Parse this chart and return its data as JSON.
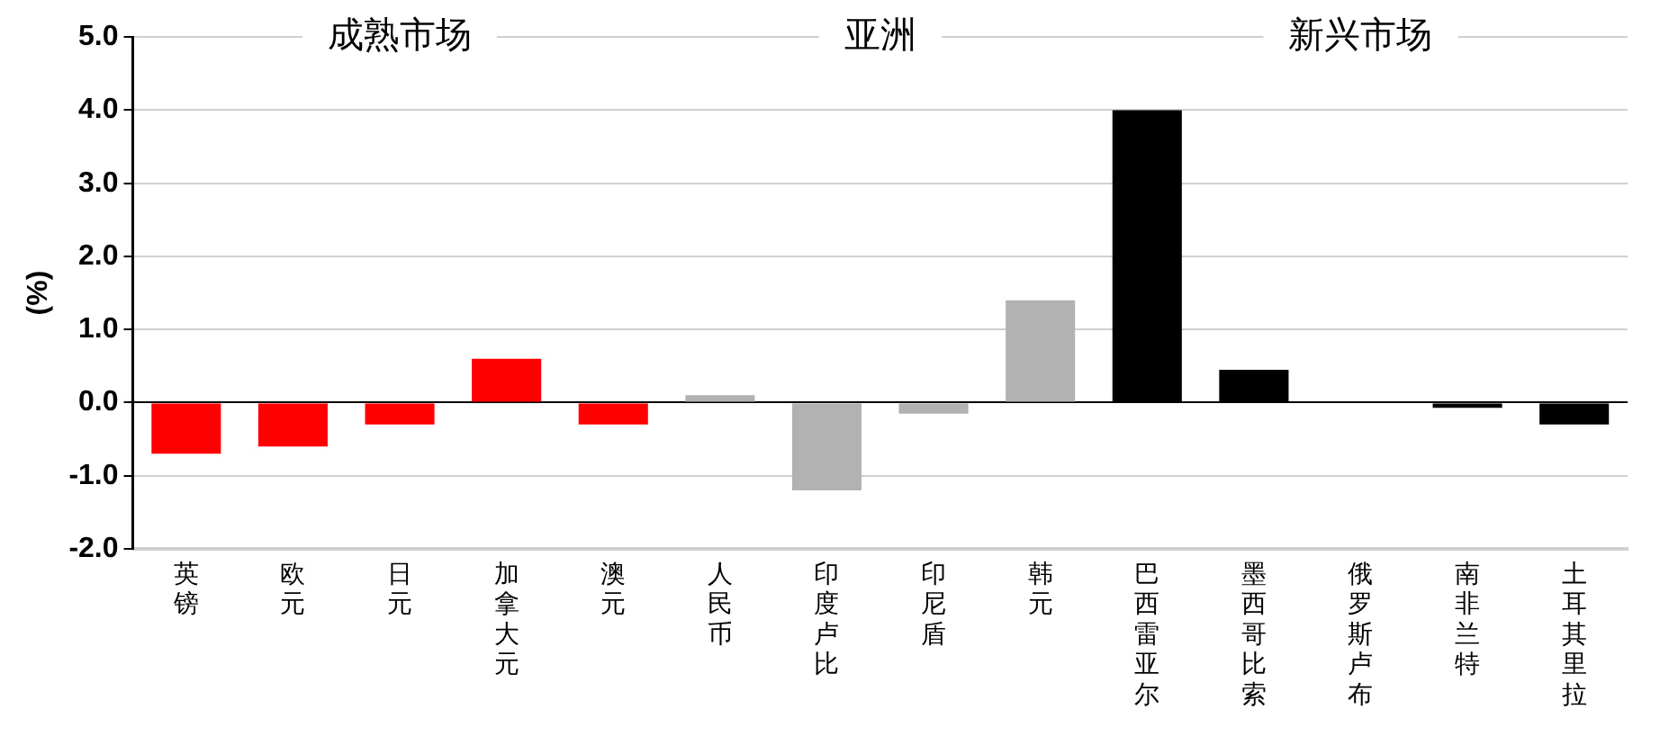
{
  "chart_data": {
    "type": "bar",
    "ylabel": "(%)",
    "categories": [
      "英镑",
      "欧元",
      "日元",
      "加拿大元",
      "澳元",
      "人民币",
      "印度卢比",
      "印尼盾",
      "韩元",
      "巴西雷亚尔",
      "墨西哥比索",
      "俄罗斯卢布",
      "南非兰特",
      "土耳其里拉"
    ],
    "values": [
      -0.7,
      -0.6,
      -0.3,
      0.6,
      -0.3,
      0.1,
      -1.2,
      -0.15,
      1.4,
      4.0,
      0.45,
      0.0,
      -0.07,
      -0.3
    ],
    "colors": [
      "#ff0000",
      "#ff0000",
      "#ff0000",
      "#ff0000",
      "#ff0000",
      "#b2b2b2",
      "#b2b2b2",
      "#b2b2b2",
      "#b2b2b2",
      "#000000",
      "#000000",
      "#000000",
      "#000000",
      "#000000"
    ],
    "annotations": [
      "成熟市场",
      "亚洲",
      "新兴市场"
    ],
    "ylim": [
      -2.0,
      5.0
    ],
    "yticks": [
      {
        "value": -2,
        "label": "-2.0"
      },
      {
        "value": -1,
        "label": "-1.0"
      },
      {
        "value": 0,
        "label": "0.0"
      },
      {
        "value": 1,
        "label": "1.0"
      },
      {
        "value": 2,
        "label": "2.0"
      },
      {
        "value": 3,
        "label": "3.0"
      },
      {
        "value": 4,
        "label": "4.0"
      },
      {
        "value": 5,
        "label": "5.0"
      }
    ],
    "grid": "y"
  }
}
